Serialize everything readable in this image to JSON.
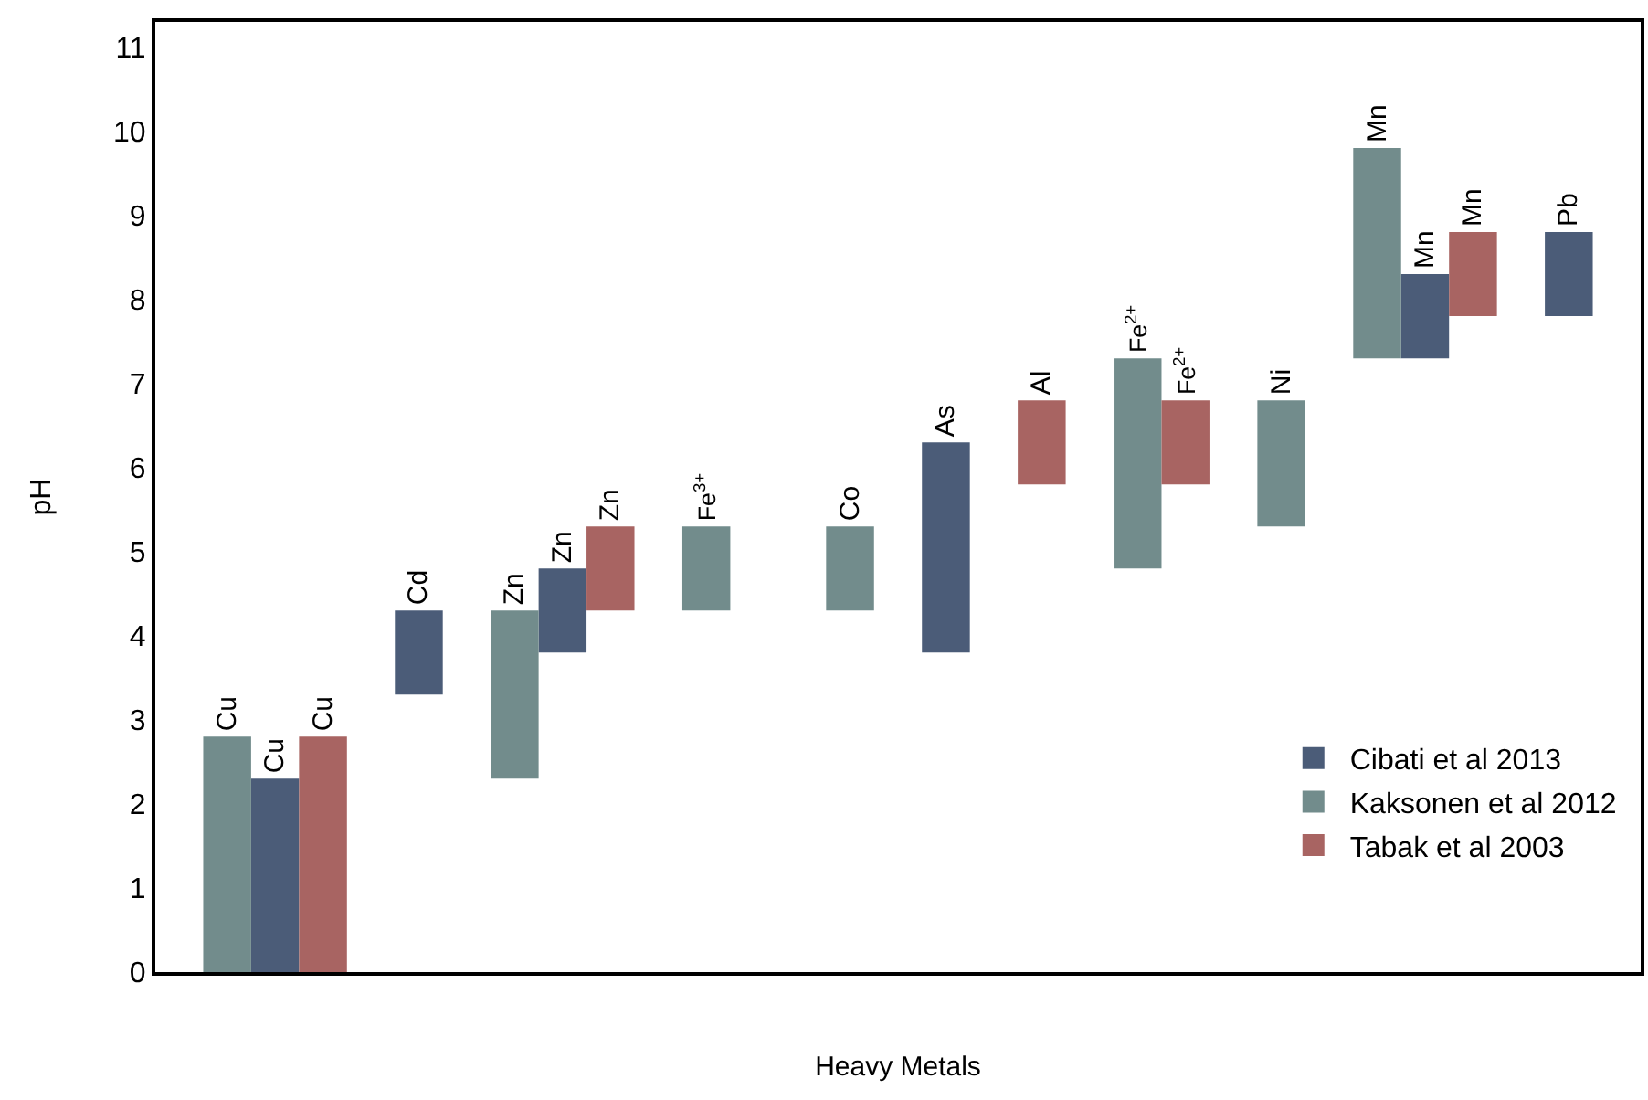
{
  "chart_data": {
    "type": "bar",
    "xlabel": "Heavy Metals",
    "ylabel": "pH",
    "categories": [
      null,
      null,
      null,
      null,
      null,
      null,
      null,
      null,
      null,
      null,
      null,
      null,
      null,
      null,
      null,
      null,
      null,
      null,
      null,
      null,
      null,
      null,
      null,
      null,
      null,
      null,
      null,
      null,
      null,
      null,
      null
    ],
    "series": [
      {
        "name": "Cibati et al 2013",
        "color": "#4b5c78",
        "values": [
          null,
          null,
          2.3,
          null,
          null,
          1,
          null,
          null,
          1,
          null,
          null,
          null,
          null,
          null,
          null,
          null,
          2.5,
          null,
          null,
          null,
          null,
          null,
          null,
          null,
          null,
          null,
          1,
          null,
          null,
          1,
          null
        ],
        "base": [
          null,
          null,
          null,
          null,
          null,
          3.3,
          null,
          null,
          3.8,
          null,
          null,
          null,
          null,
          null,
          null,
          null,
          3.8,
          null,
          null,
          null,
          null,
          null,
          null,
          null,
          null,
          null,
          7.3,
          null,
          null,
          7.8,
          null
        ],
        "value_labels": [
          null,
          null,
          "Cu",
          null,
          null,
          "Cd",
          null,
          null,
          "Zn",
          null,
          null,
          null,
          null,
          null,
          null,
          null,
          "As",
          null,
          null,
          null,
          null,
          null,
          null,
          null,
          null,
          null,
          "Mn",
          null,
          null,
          "Pb",
          null
        ]
      },
      {
        "name": "Kaksonen et al 2012",
        "color": "#728c8c",
        "values": [
          null,
          2.8,
          null,
          null,
          null,
          null,
          null,
          2,
          null,
          null,
          null,
          1,
          null,
          null,
          1,
          null,
          null,
          null,
          null,
          null,
          2.5,
          null,
          null,
          1.5,
          null,
          2.5,
          null,
          null,
          null,
          null,
          null
        ],
        "base": [
          null,
          null,
          null,
          null,
          null,
          null,
          null,
          2.3,
          null,
          null,
          null,
          4.3,
          null,
          null,
          4.3,
          null,
          null,
          null,
          null,
          null,
          4.8,
          null,
          null,
          5.3,
          null,
          7.3,
          null,
          null,
          null,
          null,
          null
        ],
        "value_labels": [
          null,
          "Cu",
          null,
          null,
          null,
          null,
          null,
          "Zn",
          null,
          null,
          null,
          "Fe$^{3+}$",
          null,
          null,
          "Co",
          null,
          null,
          null,
          null,
          null,
          "Fe$^{2+}$",
          null,
          null,
          "Ni",
          null,
          "Mn",
          null,
          null,
          null,
          null,
          null
        ]
      },
      {
        "name": "Tabak et al 2003",
        "color": "#a86462",
        "values": [
          null,
          null,
          null,
          2.8,
          null,
          null,
          null,
          null,
          null,
          1,
          null,
          null,
          null,
          null,
          null,
          null,
          null,
          null,
          1,
          null,
          null,
          1,
          null,
          null,
          null,
          null,
          null,
          1,
          null,
          null,
          null
        ],
        "base": [
          null,
          null,
          null,
          null,
          null,
          null,
          null,
          null,
          null,
          4.3,
          null,
          null,
          null,
          null,
          null,
          null,
          null,
          null,
          5.8,
          null,
          null,
          5.8,
          null,
          null,
          null,
          null,
          null,
          7.8,
          null,
          null,
          null
        ],
        "value_labels": [
          null,
          null,
          null,
          "Cu",
          null,
          null,
          null,
          null,
          null,
          "Zn",
          null,
          null,
          null,
          null,
          null,
          null,
          null,
          null,
          "Al",
          null,
          null,
          "Fe$^{2+}$",
          null,
          null,
          null,
          null,
          null,
          "Mn",
          null,
          null,
          null
        ]
      }
    ],
    "ylim": [
      0,
      11.3
    ],
    "yticks": [
      0,
      1,
      2,
      3,
      4,
      5,
      6,
      7,
      8,
      9,
      10,
      11
    ],
    "tick_labels": "y",
    "legend": "bottom right"
  }
}
